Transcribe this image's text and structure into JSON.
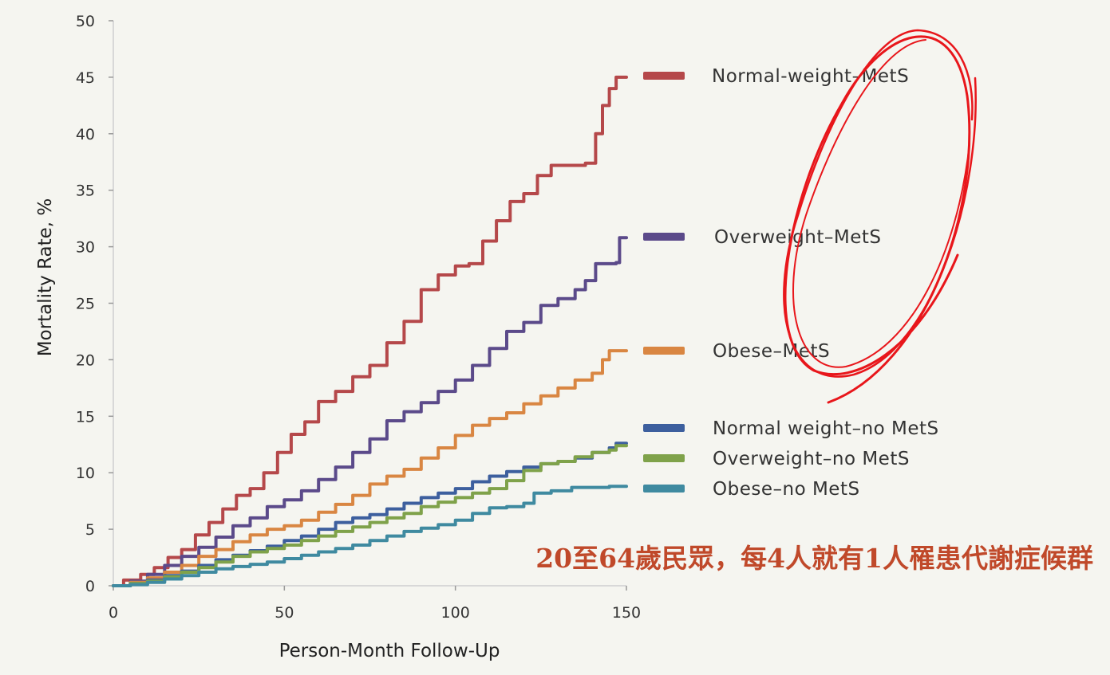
{
  "chart_data": {
    "type": "line",
    "title": "",
    "xlabel": "Person-Month Follow-Up",
    "ylabel": "Mortality Rate, %",
    "xlim": [
      0,
      150
    ],
    "ylim": [
      0,
      50
    ],
    "xticks": [
      0,
      50,
      100,
      150
    ],
    "yticks": [
      0,
      5,
      10,
      15,
      20,
      25,
      30,
      35,
      40,
      45,
      50
    ],
    "grid": false,
    "legend_position": "right",
    "series": [
      {
        "name": "Normal-weight–MetS",
        "color": "#b5484a",
        "points": [
          [
            0,
            0
          ],
          [
            3,
            0.5
          ],
          [
            8,
            1
          ],
          [
            12,
            1.6
          ],
          [
            16,
            2.5
          ],
          [
            20,
            3.2
          ],
          [
            24,
            4.5
          ],
          [
            28,
            5.6
          ],
          [
            32,
            6.8
          ],
          [
            36,
            8
          ],
          [
            40,
            8.6
          ],
          [
            44,
            10
          ],
          [
            48,
            11.8
          ],
          [
            52,
            13.4
          ],
          [
            56,
            14.5
          ],
          [
            60,
            16.3
          ],
          [
            65,
            17.2
          ],
          [
            70,
            18.5
          ],
          [
            75,
            19.5
          ],
          [
            80,
            21.5
          ],
          [
            85,
            23.4
          ],
          [
            90,
            26.2
          ],
          [
            95,
            27.5
          ],
          [
            100,
            28.3
          ],
          [
            104,
            28.5
          ],
          [
            108,
            30.5
          ],
          [
            112,
            32.3
          ],
          [
            116,
            34
          ],
          [
            120,
            34.7
          ],
          [
            124,
            36.3
          ],
          [
            128,
            37.2
          ],
          [
            132,
            37.2
          ],
          [
            138,
            37.4
          ],
          [
            141,
            40
          ],
          [
            143,
            42.5
          ],
          [
            145,
            44
          ],
          [
            147,
            45
          ],
          [
            150,
            45
          ]
        ]
      },
      {
        "name": "Overweight–MetS",
        "color": "#5b4a8a",
        "points": [
          [
            0,
            0
          ],
          [
            5,
            0.4
          ],
          [
            10,
            1
          ],
          [
            15,
            1.8
          ],
          [
            20,
            2.6
          ],
          [
            25,
            3.4
          ],
          [
            30,
            4.3
          ],
          [
            35,
            5.3
          ],
          [
            40,
            6
          ],
          [
            45,
            7
          ],
          [
            50,
            7.6
          ],
          [
            55,
            8.4
          ],
          [
            60,
            9.4
          ],
          [
            65,
            10.5
          ],
          [
            70,
            11.8
          ],
          [
            75,
            13
          ],
          [
            80,
            14.6
          ],
          [
            85,
            15.4
          ],
          [
            90,
            16.2
          ],
          [
            95,
            17.2
          ],
          [
            100,
            18.2
          ],
          [
            105,
            19.5
          ],
          [
            110,
            21
          ],
          [
            115,
            22.5
          ],
          [
            120,
            23.3
          ],
          [
            125,
            24.8
          ],
          [
            130,
            25.4
          ],
          [
            135,
            26.2
          ],
          [
            138,
            27
          ],
          [
            141,
            28.5
          ],
          [
            145,
            28.5
          ],
          [
            147,
            28.6
          ],
          [
            148,
            30.8
          ],
          [
            150,
            30.8
          ]
        ]
      },
      {
        "name": "Obese–MetS",
        "color": "#d98642",
        "points": [
          [
            0,
            0
          ],
          [
            5,
            0.3
          ],
          [
            10,
            0.7
          ],
          [
            15,
            1.2
          ],
          [
            20,
            1.8
          ],
          [
            25,
            2.6
          ],
          [
            30,
            3.2
          ],
          [
            35,
            3.9
          ],
          [
            40,
            4.5
          ],
          [
            45,
            5
          ],
          [
            50,
            5.3
          ],
          [
            55,
            5.8
          ],
          [
            60,
            6.5
          ],
          [
            65,
            7.2
          ],
          [
            70,
            8
          ],
          [
            75,
            9
          ],
          [
            80,
            9.7
          ],
          [
            85,
            10.3
          ],
          [
            90,
            11.3
          ],
          [
            95,
            12.2
          ],
          [
            100,
            13.3
          ],
          [
            105,
            14.2
          ],
          [
            110,
            14.8
          ],
          [
            115,
            15.3
          ],
          [
            120,
            16.1
          ],
          [
            125,
            16.8
          ],
          [
            130,
            17.5
          ],
          [
            135,
            18.2
          ],
          [
            140,
            18.8
          ],
          [
            143,
            20
          ],
          [
            145,
            20.8
          ],
          [
            150,
            20.8
          ]
        ]
      },
      {
        "name": "Normal weight–no MetS",
        "color": "#3d5f9e",
        "points": [
          [
            0,
            0
          ],
          [
            5,
            0.2
          ],
          [
            10,
            0.5
          ],
          [
            15,
            0.9
          ],
          [
            20,
            1.3
          ],
          [
            25,
            1.8
          ],
          [
            30,
            2.3
          ],
          [
            35,
            2.7
          ],
          [
            40,
            3.1
          ],
          [
            45,
            3.5
          ],
          [
            50,
            4
          ],
          [
            55,
            4.4
          ],
          [
            60,
            5
          ],
          [
            65,
            5.6
          ],
          [
            70,
            6
          ],
          [
            75,
            6.3
          ],
          [
            80,
            6.8
          ],
          [
            85,
            7.3
          ],
          [
            90,
            7.8
          ],
          [
            95,
            8.2
          ],
          [
            100,
            8.6
          ],
          [
            105,
            9.2
          ],
          [
            110,
            9.7
          ],
          [
            115,
            10.1
          ],
          [
            120,
            10.5
          ],
          [
            125,
            10.8
          ],
          [
            130,
            11
          ],
          [
            135,
            11.3
          ],
          [
            140,
            11.8
          ],
          [
            145,
            12.2
          ],
          [
            147,
            12.6
          ],
          [
            150,
            12.6
          ]
        ]
      },
      {
        "name": "Overweight–no MetS",
        "color": "#7fa24a",
        "points": [
          [
            0,
            0
          ],
          [
            5,
            0.2
          ],
          [
            10,
            0.4
          ],
          [
            15,
            0.8
          ],
          [
            20,
            1.2
          ],
          [
            25,
            1.6
          ],
          [
            30,
            2.1
          ],
          [
            35,
            2.6
          ],
          [
            40,
            3
          ],
          [
            45,
            3.3
          ],
          [
            50,
            3.6
          ],
          [
            55,
            4
          ],
          [
            60,
            4.4
          ],
          [
            65,
            4.8
          ],
          [
            70,
            5.2
          ],
          [
            75,
            5.6
          ],
          [
            80,
            6
          ],
          [
            85,
            6.4
          ],
          [
            90,
            7
          ],
          [
            95,
            7.4
          ],
          [
            100,
            7.8
          ],
          [
            105,
            8.2
          ],
          [
            110,
            8.6
          ],
          [
            115,
            9.3
          ],
          [
            120,
            10.2
          ],
          [
            125,
            10.8
          ],
          [
            130,
            11
          ],
          [
            135,
            11.4
          ],
          [
            140,
            11.8
          ],
          [
            145,
            12
          ],
          [
            147,
            12.4
          ],
          [
            150,
            12.4
          ]
        ]
      },
      {
        "name": "Obese–no MetS",
        "color": "#3f8aa0",
        "points": [
          [
            0,
            0
          ],
          [
            5,
            0.1
          ],
          [
            10,
            0.3
          ],
          [
            15,
            0.6
          ],
          [
            20,
            0.9
          ],
          [
            25,
            1.2
          ],
          [
            30,
            1.5
          ],
          [
            35,
            1.7
          ],
          [
            40,
            1.9
          ],
          [
            45,
            2.1
          ],
          [
            50,
            2.4
          ],
          [
            55,
            2.7
          ],
          [
            60,
            3
          ],
          [
            65,
            3.3
          ],
          [
            70,
            3.6
          ],
          [
            75,
            4
          ],
          [
            80,
            4.4
          ],
          [
            85,
            4.8
          ],
          [
            90,
            5.1
          ],
          [
            95,
            5.4
          ],
          [
            100,
            5.8
          ],
          [
            105,
            6.4
          ],
          [
            110,
            6.9
          ],
          [
            115,
            7
          ],
          [
            120,
            7.3
          ],
          [
            123,
            8.2
          ],
          [
            128,
            8.4
          ],
          [
            132,
            8.4
          ],
          [
            134,
            8.7
          ],
          [
            140,
            8.7
          ],
          [
            145,
            8.8
          ],
          [
            150,
            8.8
          ]
        ]
      }
    ]
  },
  "annotation": {
    "caption": "20至64歲民眾，每4人就有1人罹患代謝症候群",
    "caption_color": "#c0492a",
    "highlight_color": "#e8161b"
  }
}
